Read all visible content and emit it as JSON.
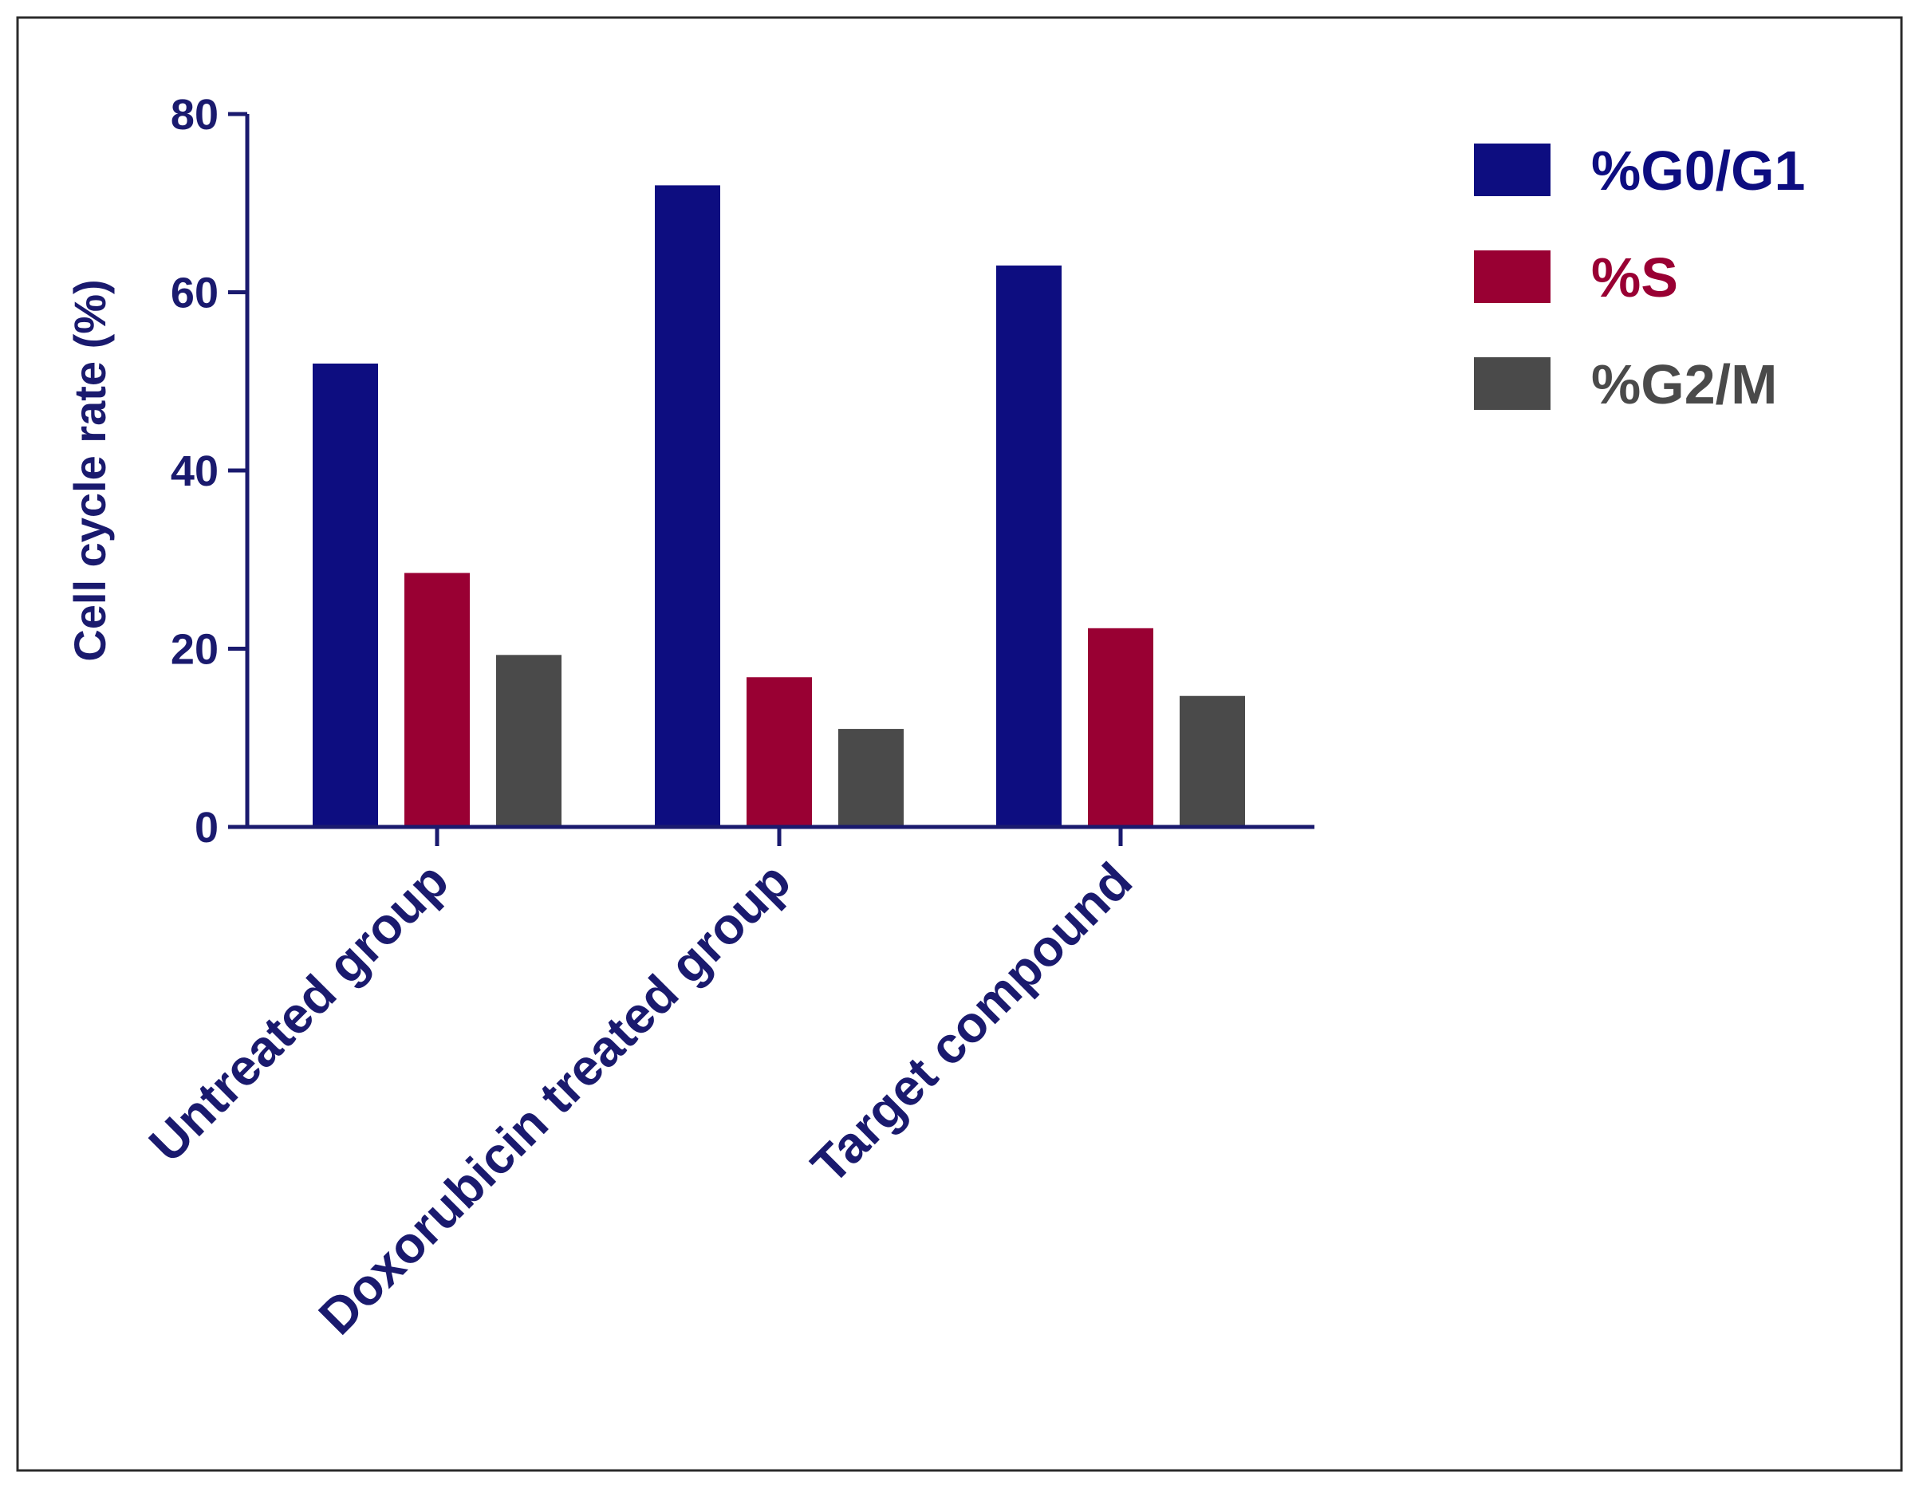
{
  "chart_data": {
    "type": "bar",
    "categories": [
      "Untreated group",
      "Doxorubicin treated group",
      "Target compound"
    ],
    "series": [
      {
        "name": "%G0/G1",
        "values": [
          52,
          72,
          63
        ],
        "color": "#0d0d80"
      },
      {
        "name": "%S",
        "values": [
          28.5,
          16.8,
          22.3
        ],
        "color": "#990033"
      },
      {
        "name": "%G2/M",
        "values": [
          19.3,
          11.0,
          14.7
        ],
        "color": "#4a4a4a"
      }
    ],
    "ylabel": "Cell cycle rate (%)",
    "ylim": [
      0,
      80
    ],
    "yticks": [
      0,
      20,
      40,
      60,
      80
    ],
    "legend_position": "top-right",
    "grid": false,
    "axis_color": "#1a1a6e"
  }
}
